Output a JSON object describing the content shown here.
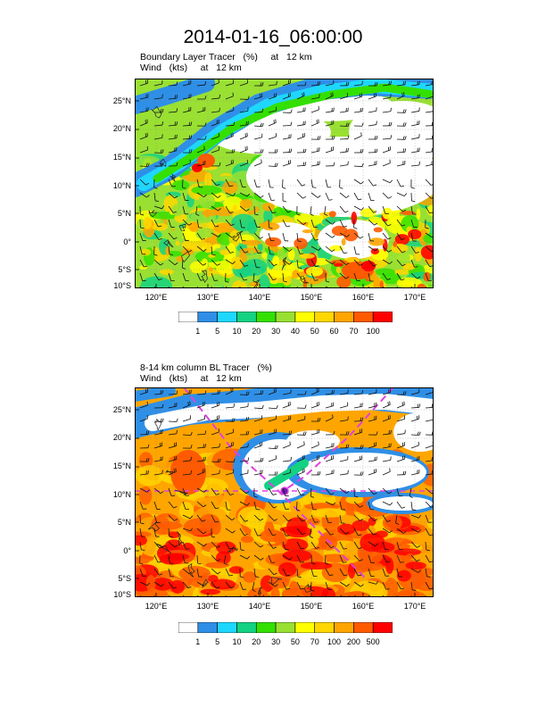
{
  "main_title": "2014-01-16_06:00:00",
  "panels": [
    {
      "title_line1": "Boundary Layer Tracer   (%)     at   12 km",
      "title_line2": "Wind   (kts)     at   12 km",
      "lat_labels": [
        "25°N",
        "20°N",
        "15°N",
        "10°N",
        "5°N",
        "0°",
        "5°S",
        "10°S"
      ],
      "lon_labels": [
        "120°E",
        "130°E",
        "140°E",
        "150°E",
        "160°E",
        "170°E"
      ],
      "colorbar_labels": [
        "1",
        "5",
        "10",
        "20",
        "30",
        "40",
        "50",
        "60",
        "70",
        "100"
      ],
      "colorbar_colors": [
        "#ffffff",
        "#2f8fe6",
        "#1ed7ff",
        "#13d282",
        "#33e000",
        "#99e033",
        "#ffff00",
        "#ffd700",
        "#ffa500",
        "#ff5a00",
        "#ff0000"
      ]
    },
    {
      "title_line1": "8-14 km column BL Tracer   (%)",
      "title_line2": "Wind   (kts)     at   12 km",
      "lat_labels": [
        "25°N",
        "20°N",
        "15°N",
        "10°N",
        "5°N",
        "0°",
        "5°S",
        "10°S"
      ],
      "lon_labels": [
        "120°E",
        "130°E",
        "140°E",
        "150°E",
        "160°E",
        "170°E"
      ],
      "colorbar_labels": [
        "1",
        "5",
        "10",
        "20",
        "30",
        "50",
        "70",
        "100",
        "200",
        "500"
      ],
      "colorbar_colors": [
        "#ffffff",
        "#2f8fe6",
        "#1ed7ff",
        "#13d282",
        "#33e000",
        "#99e033",
        "#ffff00",
        "#ffd700",
        "#ffa500",
        "#ff5a00",
        "#ff0000"
      ]
    }
  ]
}
